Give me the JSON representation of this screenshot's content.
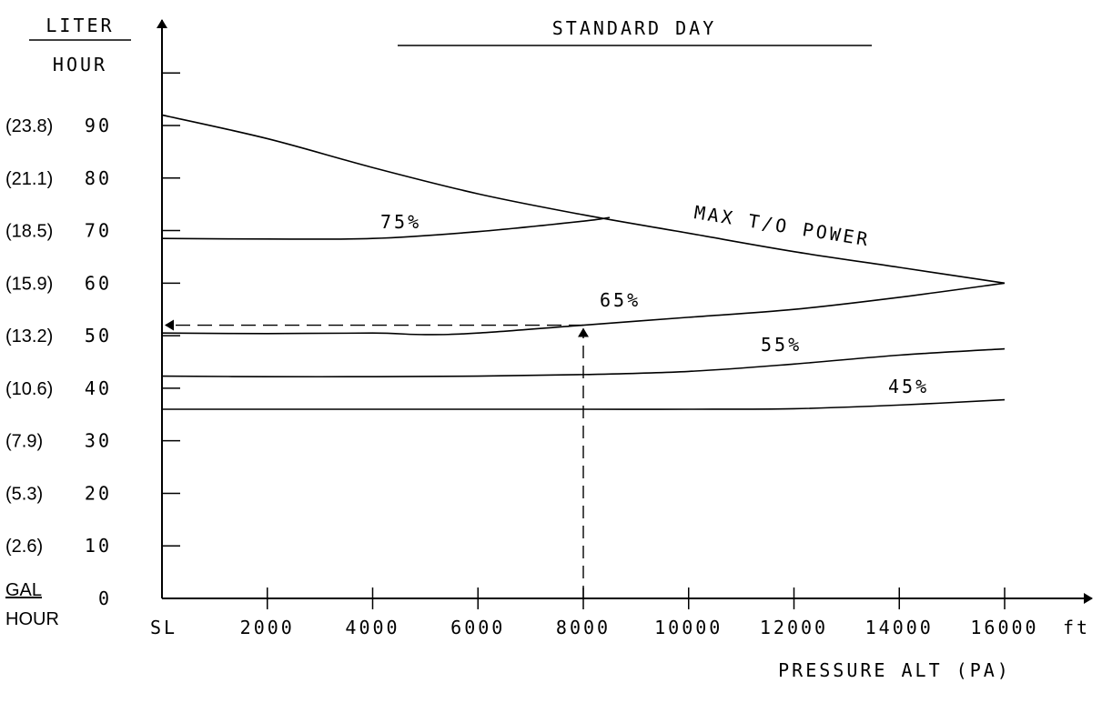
{
  "chart_data": {
    "type": "line",
    "title": "STANDARD DAY",
    "xlabel": "PRESSURE ALT (PA)",
    "x_unit": "ft",
    "ylabel_top": "LITER",
    "ylabel_bottom": "HOUR",
    "ylabel2_top": "GAL",
    "ylabel2_bottom": "HOUR",
    "xlim": [
      0,
      16000
    ],
    "ylim": [
      0,
      100
    ],
    "x_ticks": [
      0,
      2000,
      4000,
      6000,
      8000,
      10000,
      12000,
      14000,
      16000
    ],
    "x_tick_labels": [
      "SL",
      "2000",
      "4000",
      "6000",
      "8000",
      "10000",
      "12000",
      "14000",
      "16000"
    ],
    "y_ticks": [
      0,
      10,
      20,
      30,
      40,
      50,
      60,
      70,
      80,
      90
    ],
    "y_tick_labels": [
      "0",
      "10",
      "20",
      "30",
      "40",
      "50",
      "60",
      "70",
      "80",
      "90"
    ],
    "y_secondary_labels": [
      "(2.6)",
      "(5.3)",
      "(7.9)",
      "(10.6)",
      "(13.2)",
      "(15.9)",
      "(18.5)",
      "(21.1)",
      "(23.8)"
    ],
    "series": [
      {
        "name": "MAX T/O POWER",
        "x": [
          0,
          2000,
          4000,
          6000,
          8000,
          10000,
          12000,
          14000,
          16000
        ],
        "y": [
          92,
          87.5,
          82,
          77,
          73,
          69.5,
          66,
          63,
          60
        ]
      },
      {
        "name": "75%",
        "x": [
          0,
          2000,
          4000,
          6000,
          8000,
          8500
        ],
        "y": [
          68.5,
          68.4,
          68.5,
          69.8,
          71.8,
          72.5
        ]
      },
      {
        "name": "65%",
        "x": [
          0,
          2000,
          4000,
          5000,
          6000,
          8000,
          10000,
          12000,
          14000,
          16000
        ],
        "y": [
          50.5,
          50.4,
          50.5,
          50.2,
          50.5,
          52,
          53.5,
          55,
          57.3,
          60
        ]
      },
      {
        "name": "55%",
        "x": [
          0,
          2000,
          4000,
          6000,
          8000,
          10000,
          12000,
          14000,
          16000
        ],
        "y": [
          42.3,
          42.2,
          42.2,
          42.3,
          42.6,
          43.2,
          44.6,
          46.3,
          47.5
        ]
      },
      {
        "name": "45%",
        "x": [
          0,
          2000,
          4000,
          6000,
          8000,
          10000,
          12000,
          14000,
          16000
        ],
        "y": [
          36,
          36,
          36,
          36,
          36,
          36,
          36.1,
          36.8,
          37.8
        ]
      }
    ],
    "example_path": [
      {
        "x": 8000,
        "y": 0
      },
      {
        "x": 8000,
        "y": 52
      },
      {
        "x": 0,
        "y": 52
      }
    ]
  }
}
